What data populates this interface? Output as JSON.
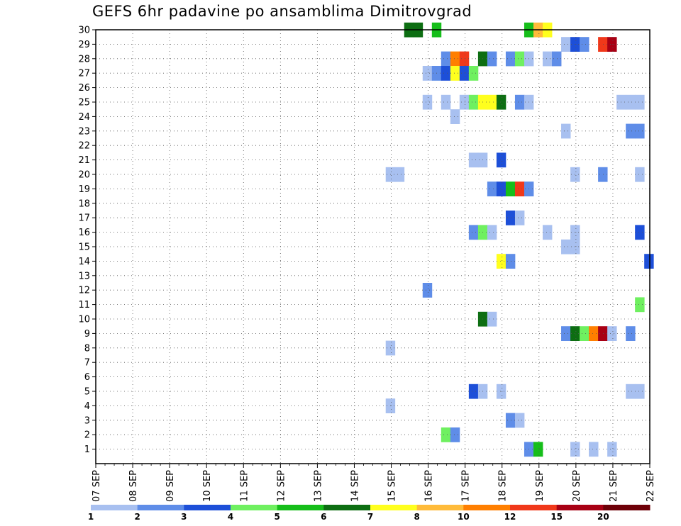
{
  "chart_data": {
    "type": "heatmap",
    "title": "GEFS 6hr padavine po ansamblima Dimitrovgrad",
    "xlabel": "",
    "ylabel": "",
    "y_ticks": [
      1,
      2,
      3,
      4,
      5,
      6,
      7,
      8,
      9,
      10,
      11,
      12,
      13,
      14,
      15,
      16,
      17,
      18,
      19,
      20,
      21,
      22,
      23,
      24,
      25,
      26,
      27,
      28,
      29,
      30
    ],
    "x_ticks": [
      "07 SEP",
      "08 SEP",
      "09 SEP",
      "10 SEP",
      "11 SEP",
      "12 SEP",
      "13 SEP",
      "14 SEP",
      "15 SEP",
      "16 SEP",
      "17 SEP",
      "18 SEP",
      "19 SEP",
      "20 SEP",
      "21 SEP",
      "22 SEP"
    ],
    "x_range_days": [
      0,
      15
    ],
    "y_range": [
      0,
      30
    ],
    "grid": true,
    "legend_placement": "bottom",
    "legend": {
      "labels": [
        "1",
        "2",
        "3",
        "4",
        "5",
        "6",
        "7",
        "8",
        "10",
        "12",
        "15",
        "20"
      ],
      "colors": [
        "#a8c0f0",
        "#5f8de8",
        "#1d4fd8",
        "#6ff060",
        "#16be1a",
        "#0d6e12",
        "#ffff1e",
        "#ffbb3a",
        "#ff7f00",
        "#f0381a",
        "#a80014",
        "#6e0008"
      ]
    },
    "cells": [
      {
        "m": 30,
        "d": 8.35,
        "c": 6
      },
      {
        "m": 30,
        "d": 8.6,
        "c": 6
      },
      {
        "m": 30,
        "d": 9.1,
        "c": 5
      },
      {
        "m": 30,
        "d": 11.6,
        "c": 5
      },
      {
        "m": 30,
        "d": 11.85,
        "c": 8
      },
      {
        "m": 30,
        "d": 12.1,
        "c": 7
      },
      {
        "m": 29,
        "d": 12.6,
        "c": 1
      },
      {
        "m": 29,
        "d": 12.85,
        "c": 3
      },
      {
        "m": 29,
        "d": 13.1,
        "c": 2
      },
      {
        "m": 29,
        "d": 13.6,
        "c": 10
      },
      {
        "m": 29,
        "d": 13.85,
        "c": 11
      },
      {
        "m": 28,
        "d": 9.35,
        "c": 2
      },
      {
        "m": 28,
        "d": 9.6,
        "c": 9
      },
      {
        "m": 28,
        "d": 9.85,
        "c": 10
      },
      {
        "m": 28,
        "d": 10.35,
        "c": 6
      },
      {
        "m": 28,
        "d": 10.6,
        "c": 2
      },
      {
        "m": 28,
        "d": 11.1,
        "c": 2
      },
      {
        "m": 28,
        "d": 11.35,
        "c": 4
      },
      {
        "m": 28,
        "d": 11.6,
        "c": 1
      },
      {
        "m": 28,
        "d": 12.1,
        "c": 1
      },
      {
        "m": 28,
        "d": 12.35,
        "c": 2
      },
      {
        "m": 27,
        "d": 8.85,
        "c": 1
      },
      {
        "m": 27,
        "d": 9.1,
        "c": 2
      },
      {
        "m": 27,
        "d": 9.35,
        "c": 3
      },
      {
        "m": 27,
        "d": 9.6,
        "c": 7
      },
      {
        "m": 27,
        "d": 9.85,
        "c": 3
      },
      {
        "m": 27,
        "d": 10.1,
        "c": 4
      },
      {
        "m": 25,
        "d": 8.85,
        "c": 1
      },
      {
        "m": 25,
        "d": 9.35,
        "c": 1
      },
      {
        "m": 25,
        "d": 9.85,
        "c": 1
      },
      {
        "m": 25,
        "d": 10.1,
        "c": 4
      },
      {
        "m": 25,
        "d": 10.35,
        "c": 7
      },
      {
        "m": 25,
        "d": 10.6,
        "c": 7
      },
      {
        "m": 25,
        "d": 10.85,
        "c": 6
      },
      {
        "m": 25,
        "d": 11.35,
        "c": 2
      },
      {
        "m": 25,
        "d": 11.6,
        "c": 1
      },
      {
        "m": 25,
        "d": 14.1,
        "c": 1
      },
      {
        "m": 25,
        "d": 14.35,
        "c": 1
      },
      {
        "m": 25,
        "d": 14.6,
        "c": 1
      },
      {
        "m": 24,
        "d": 9.6,
        "c": 1
      },
      {
        "m": 23,
        "d": 12.6,
        "c": 1
      },
      {
        "m": 23,
        "d": 14.35,
        "c": 2
      },
      {
        "m": 23,
        "d": 14.6,
        "c": 2
      },
      {
        "m": 21,
        "d": 10.1,
        "c": 1
      },
      {
        "m": 21,
        "d": 10.35,
        "c": 1
      },
      {
        "m": 21,
        "d": 10.85,
        "c": 3
      },
      {
        "m": 20,
        "d": 7.85,
        "c": 1
      },
      {
        "m": 20,
        "d": 8.1,
        "c": 1
      },
      {
        "m": 20,
        "d": 12.85,
        "c": 1
      },
      {
        "m": 20,
        "d": 13.6,
        "c": 2
      },
      {
        "m": 20,
        "d": 14.6,
        "c": 1
      },
      {
        "m": 19,
        "d": 10.6,
        "c": 2
      },
      {
        "m": 19,
        "d": 10.85,
        "c": 3
      },
      {
        "m": 19,
        "d": 11.1,
        "c": 5
      },
      {
        "m": 19,
        "d": 11.35,
        "c": 10
      },
      {
        "m": 19,
        "d": 11.6,
        "c": 2
      },
      {
        "m": 17,
        "d": 11.1,
        "c": 3
      },
      {
        "m": 17,
        "d": 11.35,
        "c": 1
      },
      {
        "m": 16,
        "d": 10.1,
        "c": 2
      },
      {
        "m": 16,
        "d": 10.35,
        "c": 4
      },
      {
        "m": 16,
        "d": 10.6,
        "c": 1
      },
      {
        "m": 16,
        "d": 12.1,
        "c": 1
      },
      {
        "m": 16,
        "d": 12.85,
        "c": 1
      },
      {
        "m": 16,
        "d": 14.6,
        "c": 3
      },
      {
        "m": 15,
        "d": 12.6,
        "c": 1
      },
      {
        "m": 15,
        "d": 12.85,
        "c": 1
      },
      {
        "m": 14,
        "d": 10.85,
        "c": 7
      },
      {
        "m": 14,
        "d": 11.1,
        "c": 2
      },
      {
        "m": 14,
        "d": 14.85,
        "c": 3
      },
      {
        "m": 12,
        "d": 8.85,
        "c": 2
      },
      {
        "m": 11,
        "d": 14.6,
        "c": 4
      },
      {
        "m": 10,
        "d": 10.35,
        "c": 6
      },
      {
        "m": 10,
        "d": 10.6,
        "c": 1
      },
      {
        "m": 9,
        "d": 12.6,
        "c": 2
      },
      {
        "m": 9,
        "d": 12.85,
        "c": 6
      },
      {
        "m": 9,
        "d": 13.1,
        "c": 4
      },
      {
        "m": 9,
        "d": 13.35,
        "c": 9
      },
      {
        "m": 9,
        "d": 13.6,
        "c": 11
      },
      {
        "m": 9,
        "d": 13.85,
        "c": 1
      },
      {
        "m": 9,
        "d": 14.35,
        "c": 2
      },
      {
        "m": 8,
        "d": 7.85,
        "c": 1
      },
      {
        "m": 5,
        "d": 10.1,
        "c": 3
      },
      {
        "m": 5,
        "d": 10.35,
        "c": 1
      },
      {
        "m": 5,
        "d": 10.85,
        "c": 1
      },
      {
        "m": 5,
        "d": 14.35,
        "c": 1
      },
      {
        "m": 5,
        "d": 14.6,
        "c": 1
      },
      {
        "m": 4,
        "d": 7.85,
        "c": 1
      },
      {
        "m": 3,
        "d": 11.1,
        "c": 2
      },
      {
        "m": 3,
        "d": 11.35,
        "c": 1
      },
      {
        "m": 2,
        "d": 9.35,
        "c": 4
      },
      {
        "m": 2,
        "d": 9.6,
        "c": 2
      },
      {
        "m": 1,
        "d": 11.6,
        "c": 2
      },
      {
        "m": 1,
        "d": 11.85,
        "c": 5
      },
      {
        "m": 1,
        "d": 12.85,
        "c": 1
      },
      {
        "m": 1,
        "d": 13.35,
        "c": 1
      },
      {
        "m": 1,
        "d": 13.85,
        "c": 1
      }
    ]
  }
}
